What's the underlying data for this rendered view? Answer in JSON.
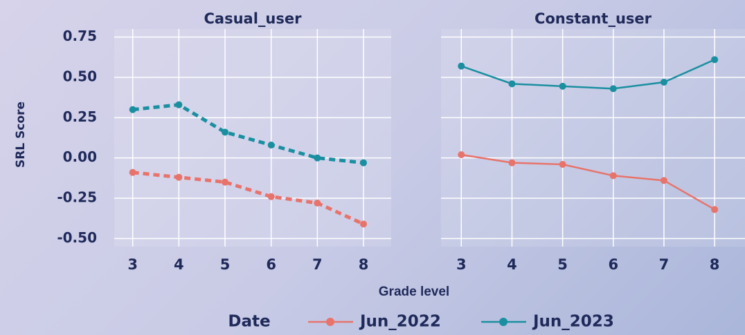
{
  "ylabel": "SRL Score",
  "xlabel": "Grade level",
  "legend_title": "Date",
  "chart_data": [
    {
      "type": "line",
      "title": "Casual_user",
      "linestyle": "dashed",
      "x": [
        3,
        4,
        5,
        6,
        7,
        8
      ],
      "series": [
        {
          "name": "Jun_2022",
          "color": "#e8736b",
          "values": [
            -0.09,
            -0.12,
            -0.15,
            -0.24,
            -0.28,
            -0.41
          ]
        },
        {
          "name": "Jun_2023",
          "color": "#1a8fa0",
          "values": [
            0.3,
            0.33,
            0.16,
            0.08,
            0.0,
            -0.03
          ]
        }
      ],
      "xlim": [
        2.6,
        8.6
      ],
      "xticks": [
        3,
        4,
        5,
        6,
        7,
        8
      ],
      "ylim": [
        -0.55,
        0.8
      ],
      "yticks": [
        {
          "value": -0.5,
          "label": "-0.50"
        },
        {
          "value": -0.25,
          "label": "-0.25"
        },
        {
          "value": 0,
          "label": "0.00"
        },
        {
          "value": 0.25,
          "label": "0.25"
        },
        {
          "value": 0.5,
          "label": "0.50"
        },
        {
          "value": 0.75,
          "label": "0.75"
        }
      ],
      "grid": true
    },
    {
      "type": "line",
      "title": "Constant_user",
      "linestyle": "solid",
      "x": [
        3,
        4,
        5,
        6,
        7,
        8
      ],
      "series": [
        {
          "name": "Jun_2022",
          "color": "#e8736b",
          "values": [
            0.02,
            -0.03,
            -0.04,
            -0.11,
            -0.14,
            -0.32
          ]
        },
        {
          "name": "Jun_2023",
          "color": "#1a8fa0",
          "values": [
            0.57,
            0.46,
            0.445,
            0.43,
            0.47,
            0.61
          ]
        }
      ],
      "xlim": [
        2.6,
        8.6
      ],
      "xticks": [
        3,
        4,
        5,
        6,
        7,
        8
      ],
      "ylim": [
        -0.55,
        0.8
      ],
      "yticks": [
        {
          "value": -0.5,
          "label": "-0.50"
        },
        {
          "value": -0.25,
          "label": "-0.25"
        },
        {
          "value": 0,
          "label": "0.00"
        },
        {
          "value": 0.25,
          "label": "0.25"
        },
        {
          "value": 0.5,
          "label": "0.50"
        },
        {
          "value": 0.75,
          "label": "0.75"
        }
      ],
      "grid": true
    }
  ]
}
